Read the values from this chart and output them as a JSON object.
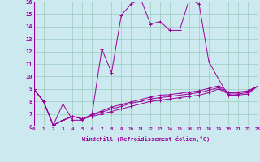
{
  "xlabel": "Windchill (Refroidissement éolien,°C)",
  "xlim": [
    0,
    23
  ],
  "ylim": [
    6,
    16
  ],
  "yticks": [
    6,
    7,
    8,
    9,
    10,
    11,
    12,
    13,
    14,
    15,
    16
  ],
  "xticks": [
    0,
    1,
    2,
    3,
    4,
    5,
    6,
    7,
    8,
    9,
    10,
    11,
    12,
    13,
    14,
    15,
    16,
    17,
    18,
    19,
    20,
    21,
    22,
    23
  ],
  "background_color": "#cce9f0",
  "grid_color": "#99ccbb",
  "line_color": "#990099",
  "series": [
    [
      9.0,
      8.0,
      6.1,
      7.8,
      6.5,
      6.5,
      7.0,
      12.2,
      10.3,
      14.9,
      15.8,
      16.2,
      14.2,
      14.4,
      13.7,
      13.7,
      16.2,
      15.8,
      11.2,
      9.8,
      8.5,
      8.5,
      8.6,
      9.2
    ],
    [
      9.0,
      8.0,
      6.1,
      6.5,
      6.8,
      6.6,
      6.8,
      7.0,
      7.2,
      7.4,
      7.6,
      7.8,
      8.0,
      8.1,
      8.2,
      8.3,
      8.4,
      8.5,
      8.7,
      9.0,
      8.6,
      8.6,
      8.7,
      9.2
    ],
    [
      9.0,
      8.0,
      6.1,
      6.5,
      6.8,
      6.6,
      6.9,
      7.15,
      7.4,
      7.6,
      7.85,
      8.0,
      8.2,
      8.3,
      8.4,
      8.5,
      8.6,
      8.7,
      8.9,
      9.1,
      8.7,
      8.7,
      8.8,
      9.2
    ],
    [
      9.0,
      8.0,
      6.1,
      6.5,
      6.8,
      6.6,
      6.95,
      7.25,
      7.55,
      7.75,
      7.95,
      8.15,
      8.35,
      8.5,
      8.55,
      8.65,
      8.75,
      8.85,
      9.05,
      9.25,
      8.75,
      8.75,
      8.85,
      9.2
    ]
  ]
}
